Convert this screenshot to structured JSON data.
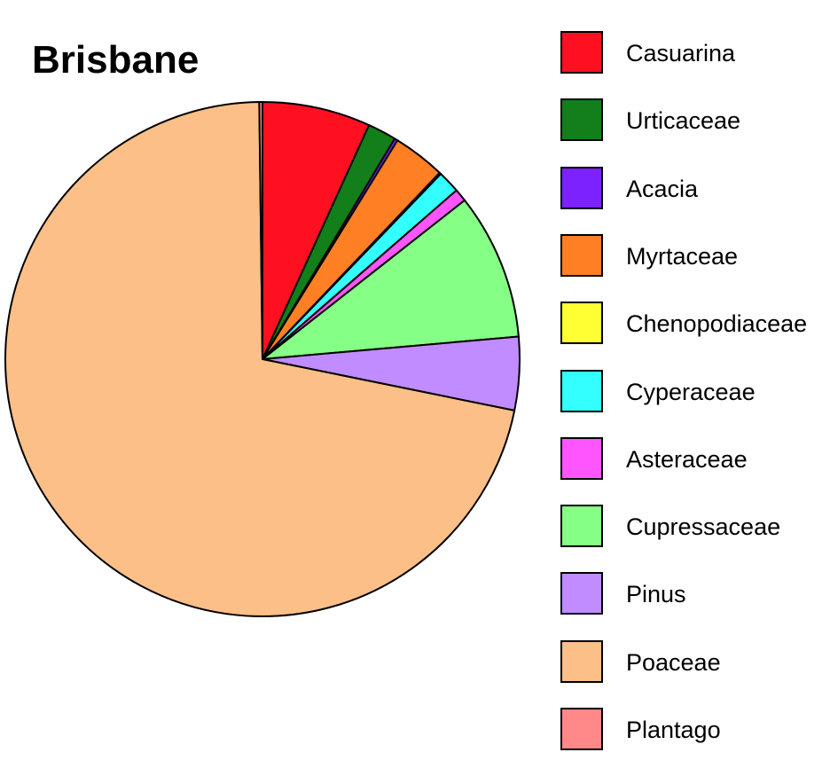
{
  "chart_data": {
    "type": "pie",
    "title": "Brisbane",
    "legend_position": "right",
    "slices": [
      {
        "label": "Casuarina",
        "value": 6.8,
        "color": "#ff1020"
      },
      {
        "label": "Urticaceae",
        "value": 1.8,
        "color": "#127f1a"
      },
      {
        "label": "Acacia",
        "value": 0.2,
        "color": "#7b22ff"
      },
      {
        "label": "Myrtaceae",
        "value": 3.3,
        "color": "#ff7f25"
      },
      {
        "label": "Chenopodiaceae",
        "value": 0.1,
        "color": "#ffff33"
      },
      {
        "label": "Cyperaceae",
        "value": 1.4,
        "color": "#33ffff"
      },
      {
        "label": "Asteraceae",
        "value": 0.8,
        "color": "#ff55ff"
      },
      {
        "label": "Cupressaceae",
        "value": 9.2,
        "color": "#85ff85"
      },
      {
        "label": "Pinus",
        "value": 4.6,
        "color": "#c08cff"
      },
      {
        "label": "Poaceae",
        "value": 71.6,
        "color": "#fcbf88"
      },
      {
        "label": "Plantago",
        "value": 0.2,
        "color": "#ff8888"
      }
    ]
  }
}
